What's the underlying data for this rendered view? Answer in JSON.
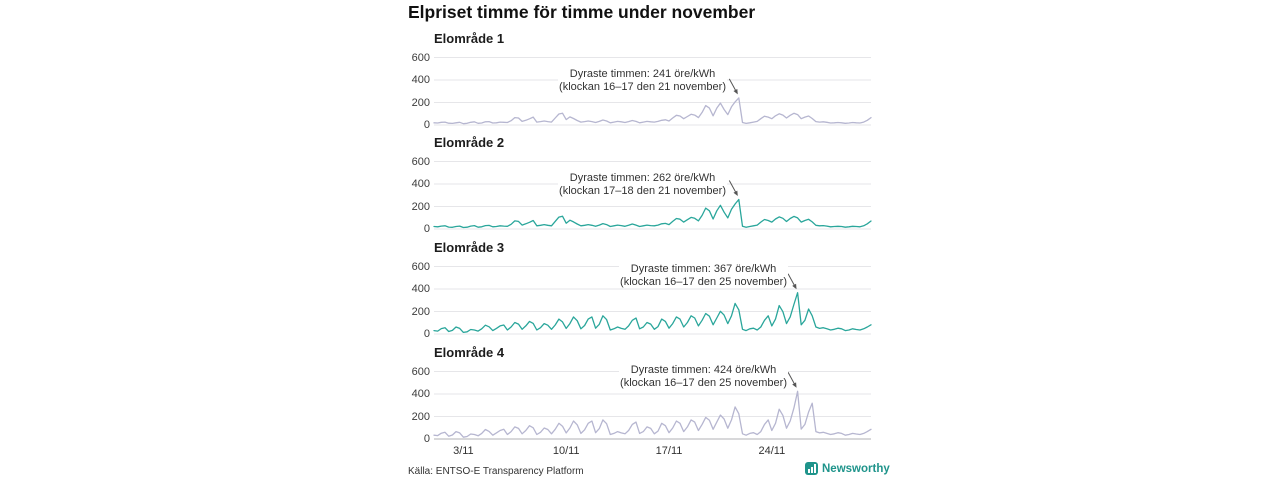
{
  "title": "Elpriset timme för timme under november",
  "source": "Källa: ENTSO-E Transparency Platform",
  "brand": {
    "name": "Newsworthy",
    "color": "#1f948b",
    "icon": "bar-chart-logo-icon"
  },
  "colors": {
    "grid": "#e6e6e9",
    "axis_line": "#b0b0b5",
    "arrow": "#555555",
    "series_gray": "#b6b6d0",
    "series_teal": "#2aa69b",
    "text": "#333333"
  },
  "y_axis": {
    "ticks": [
      0,
      200,
      400,
      600
    ],
    "ylim": [
      0,
      650
    ],
    "unit": "öre/kWh"
  },
  "x_axis": {
    "range_days": [
      1,
      30
    ],
    "month": "november",
    "sampling_hours": 6,
    "ticks": [
      {
        "label": "3/11",
        "day": 3
      },
      {
        "label": "10/11",
        "day": 10
      },
      {
        "label": "17/11",
        "day": 17
      },
      {
        "label": "24/11",
        "day": 24
      }
    ]
  },
  "chart_data": [
    {
      "type": "line",
      "title": "Elområde 1",
      "color": "#b6b6d0",
      "unit": "öre/kWh",
      "annotation": {
        "line1": "Dyraste timmen: 241 öre/kWh",
        "line2": "(klockan 16–17 den 21 november)"
      },
      "peak": {
        "value": 241,
        "hours": "16–17",
        "date": "21 november"
      },
      "axis_line": false,
      "values": [
        20,
        18,
        24,
        26,
        16,
        14,
        20,
        24,
        12,
        15,
        24,
        28,
        15,
        18,
        28,
        30,
        18,
        20,
        26,
        24,
        22,
        38,
        66,
        62,
        32,
        42,
        55,
        70,
        26,
        30,
        36,
        30,
        26,
        62,
        98,
        105,
        48,
        72,
        58,
        40,
        26,
        30,
        36,
        30,
        22,
        32,
        44,
        36,
        20,
        26,
        32,
        28,
        22,
        30,
        40,
        32,
        20,
        26,
        32,
        28,
        26,
        32,
        42,
        46,
        36,
        62,
        86,
        80,
        56,
        76,
        95,
        88,
        66,
        112,
        172,
        150,
        82,
        150,
        195,
        138,
        92,
        162,
        205,
        241,
        22,
        14,
        20,
        26,
        32,
        56,
        78,
        70,
        56,
        82,
        100,
        88,
        62,
        86,
        104,
        92,
        56,
        70,
        80,
        58,
        30,
        26,
        28,
        24,
        18,
        20,
        22,
        20,
        15,
        18,
        22,
        20,
        18,
        26,
        42,
        66
      ]
    },
    {
      "type": "line",
      "title": "Elområde 2",
      "color": "#2aa69b",
      "unit": "öre/kWh",
      "annotation": {
        "line1": "Dyraste timmen: 262 öre/kWh",
        "line2": "(klockan 17–18 den 21 november)"
      },
      "peak": {
        "value": 262,
        "hours": "17–18",
        "date": "21 november"
      },
      "axis_line": false,
      "values": [
        22,
        20,
        26,
        28,
        17,
        15,
        22,
        26,
        13,
        16,
        26,
        30,
        16,
        20,
        30,
        32,
        20,
        22,
        28,
        26,
        24,
        42,
        72,
        68,
        35,
        46,
        60,
        76,
        28,
        33,
        39,
        33,
        28,
        68,
        106,
        114,
        52,
        78,
        63,
        44,
        28,
        33,
        39,
        33,
        24,
        35,
        48,
        39,
        22,
        28,
        35,
        30,
        24,
        33,
        44,
        35,
        22,
        28,
        35,
        30,
        28,
        35,
        46,
        50,
        39,
        68,
        93,
        87,
        61,
        83,
        103,
        95,
        72,
        121,
        186,
        162,
        89,
        162,
        211,
        149,
        99,
        175,
        222,
        262,
        24,
        15,
        22,
        28,
        35,
        61,
        84,
        76,
        61,
        89,
        108,
        95,
        67,
        93,
        112,
        99,
        61,
        76,
        86,
        63,
        33,
        28,
        30,
        26,
        20,
        22,
        24,
        22,
        16,
        20,
        24,
        22,
        20,
        28,
        46,
        71
      ]
    },
    {
      "type": "line",
      "title": "Elområde 3",
      "color": "#2aa69b",
      "unit": "öre/kWh",
      "annotation": {
        "line1": "Dyraste timmen: 367 öre/kWh",
        "line2": "(klockan 16–17 den 25 november)"
      },
      "peak": {
        "value": 367,
        "hours": "16–17",
        "date": "25 november"
      },
      "axis_line": false,
      "values": [
        30,
        26,
        48,
        56,
        22,
        32,
        62,
        50,
        14,
        20,
        40,
        36,
        26,
        46,
        78,
        64,
        30,
        50,
        72,
        80,
        36,
        62,
        102,
        88,
        42,
        72,
        112,
        94,
        36,
        56,
        92,
        78,
        42,
        80,
        132,
        108,
        50,
        92,
        152,
        118,
        46,
        76,
        132,
        152,
        52,
        86,
        162,
        128,
        36,
        46,
        62,
        50,
        42,
        72,
        122,
        142,
        46,
        62,
        102,
        88,
        42,
        66,
        132,
        112,
        52,
        92,
        152,
        132,
        62,
        102,
        162,
        142,
        72,
        122,
        182,
        158,
        82,
        142,
        202,
        168,
        92,
        162,
        272,
        215,
        42,
        30,
        46,
        52,
        36,
        62,
        122,
        162,
        72,
        132,
        252,
        198,
        92,
        152,
        262,
        367,
        82,
        122,
        222,
        162,
        62,
        50,
        56,
        46,
        36,
        42,
        52,
        46,
        30,
        36,
        46,
        40,
        36,
        46,
        62,
        82
      ]
    },
    {
      "type": "line",
      "title": "Elområde 4",
      "color": "#b6b6d0",
      "unit": "öre/kWh",
      "annotation": {
        "line1": "Dyraste timmen: 424 öre/kWh",
        "line2": "(klockan 16–17 den 25 november)"
      },
      "peak": {
        "value": 424,
        "hours": "16–17",
        "date": "25 november"
      },
      "axis_line": true,
      "values": [
        34,
        30,
        52,
        60,
        25,
        36,
        66,
        54,
        16,
        22,
        44,
        40,
        28,
        50,
        84,
        68,
        34,
        54,
        76,
        86,
        40,
        66,
        108,
        94,
        46,
        76,
        118,
        100,
        40,
        60,
        98,
        84,
        46,
        86,
        140,
        114,
        54,
        98,
        160,
        126,
        50,
        82,
        140,
        160,
        56,
        92,
        170,
        136,
        40,
        50,
        66,
        54,
        46,
        76,
        130,
        150,
        50,
        66,
        108,
        94,
        46,
        70,
        140,
        118,
        56,
        98,
        160,
        140,
        66,
        108,
        170,
        150,
        76,
        130,
        192,
        166,
        86,
        150,
        212,
        178,
        96,
        170,
        285,
        225,
        46,
        34,
        50,
        56,
        40,
        66,
        130,
        170,
        76,
        140,
        265,
        210,
        96,
        160,
        275,
        424,
        88,
        130,
        240,
        318,
        66,
        54,
        60,
        50,
        40,
        46,
        56,
        50,
        34,
        40,
        50,
        44,
        40,
        50,
        66,
        86
      ]
    }
  ]
}
